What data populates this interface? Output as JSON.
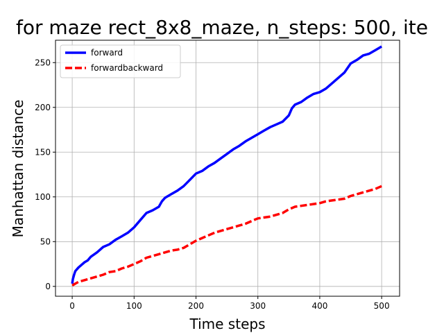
{
  "chart_data": {
    "type": "line",
    "title": "for maze rect_8x8_maze, n_steps: 500, ite",
    "xlabel": "Time steps",
    "ylabel": "Manhattan distance",
    "xlim": [
      -27,
      529
    ],
    "ylim": [
      -11,
      275
    ],
    "xticks": [
      0,
      100,
      200,
      300,
      400,
      500
    ],
    "yticks": [
      0,
      50,
      100,
      150,
      200,
      250
    ],
    "grid": true,
    "legend_position": "top-left",
    "series": [
      {
        "name": "forward",
        "color": "#0000ff",
        "style": "solid",
        "x": [
          0,
          1,
          3,
          5,
          10,
          15,
          20,
          25,
          30,
          40,
          50,
          60,
          70,
          80,
          90,
          100,
          110,
          120,
          130,
          140,
          145,
          150,
          160,
          170,
          180,
          190,
          200,
          210,
          220,
          230,
          240,
          250,
          260,
          270,
          280,
          290,
          300,
          310,
          320,
          330,
          340,
          350,
          355,
          360,
          370,
          380,
          390,
          400,
          410,
          420,
          430,
          440,
          450,
          460,
          470,
          480,
          490,
          500
        ],
        "y": [
          3,
          8,
          13,
          17,
          21,
          24,
          27,
          29,
          33,
          38,
          44,
          47,
          52,
          56,
          60,
          66,
          74,
          82,
          85,
          89,
          95,
          99,
          103,
          107,
          112,
          119,
          126,
          129,
          134,
          138,
          143,
          148,
          153,
          157,
          162,
          166,
          170,
          174,
          178,
          181,
          184,
          191,
          199,
          203,
          206,
          211,
          215,
          217,
          221,
          227,
          233,
          239,
          249,
          253,
          258,
          260,
          264,
          268
        ]
      },
      {
        "name": "forwardbackward",
        "color": "#ff0000",
        "style": "dashed",
        "x": [
          0,
          5,
          10,
          20,
          30,
          40,
          50,
          60,
          70,
          80,
          90,
          100,
          110,
          120,
          130,
          140,
          150,
          160,
          170,
          180,
          190,
          200,
          210,
          220,
          230,
          240,
          250,
          260,
          270,
          280,
          290,
          300,
          310,
          320,
          330,
          340,
          350,
          360,
          370,
          380,
          390,
          400,
          410,
          420,
          430,
          440,
          450,
          460,
          470,
          480,
          490,
          500
        ],
        "y": [
          1,
          3,
          5,
          7,
          9,
          11,
          13,
          16,
          17,
          20,
          22,
          25,
          28,
          32,
          34,
          36,
          38,
          40,
          41,
          43,
          47,
          51,
          54,
          57,
          60,
          62,
          64,
          66,
          68,
          70,
          73,
          76,
          77,
          78,
          80,
          82,
          86,
          89,
          90,
          91,
          92,
          93,
          95,
          96,
          97,
          98,
          101,
          103,
          105,
          107,
          109,
          112
        ]
      }
    ]
  }
}
